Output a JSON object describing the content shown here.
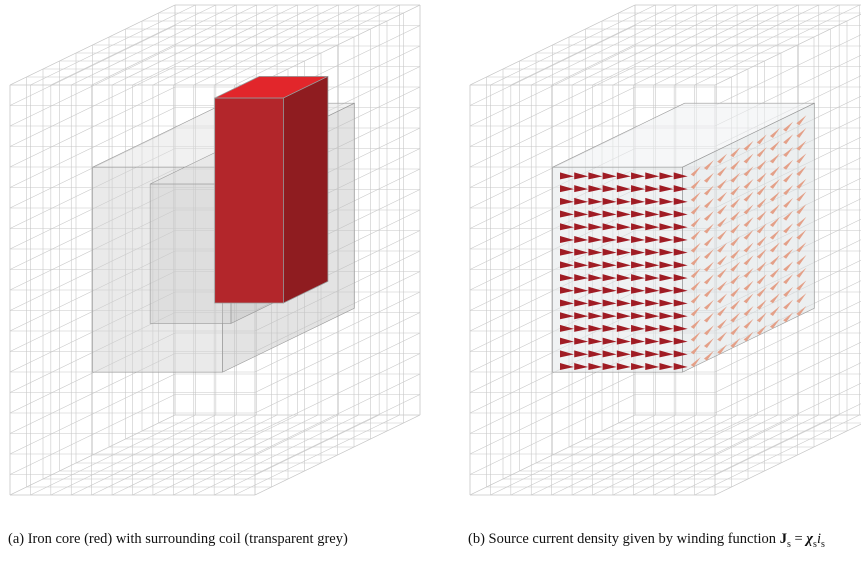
{
  "captions": {
    "a": "(a) Iron core (red) with surrounding coil (transparent grey)",
    "b": {
      "text": "(b) Source current density given by winding function",
      "math": [
        "J",
        "s",
        "=",
        "χ",
        "s",
        "i",
        "s"
      ]
    }
  }
}
